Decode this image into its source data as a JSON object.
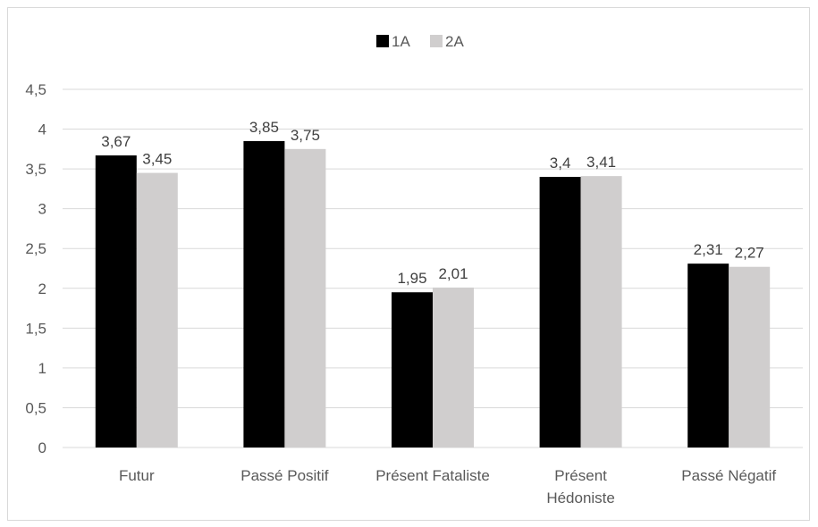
{
  "chart_data": {
    "type": "bar",
    "categories": [
      [
        "Futur"
      ],
      [
        "Passé Positif"
      ],
      [
        "Présent Fataliste"
      ],
      [
        "Présent",
        "Hédoniste"
      ],
      [
        "Passé Négatif"
      ]
    ],
    "series": [
      {
        "name": "1A",
        "color": "#000000",
        "values": [
          3.67,
          3.85,
          1.95,
          3.4,
          2.31
        ],
        "labels": [
          "3,67",
          "3,85",
          "1,95",
          "3,4",
          "2,31"
        ]
      },
      {
        "name": "2A",
        "color": "#d0cece",
        "values": [
          3.45,
          3.75,
          2.01,
          3.41,
          2.27
        ],
        "labels": [
          "3,45",
          "3,75",
          "2,01",
          "3,41",
          "2,27"
        ]
      }
    ],
    "ylim": [
      0,
      4.5
    ],
    "yticks": [
      0,
      0.5,
      1,
      1.5,
      2,
      2.5,
      3,
      3.5,
      4,
      4.5
    ],
    "ytick_labels": [
      "0",
      "0,5",
      "1",
      "1,5",
      "2",
      "2,5",
      "3",
      "3,5",
      "4",
      "4,5"
    ],
    "grid": true,
    "legend_position": "top-center",
    "title": "",
    "xlabel": "",
    "ylabel": ""
  }
}
